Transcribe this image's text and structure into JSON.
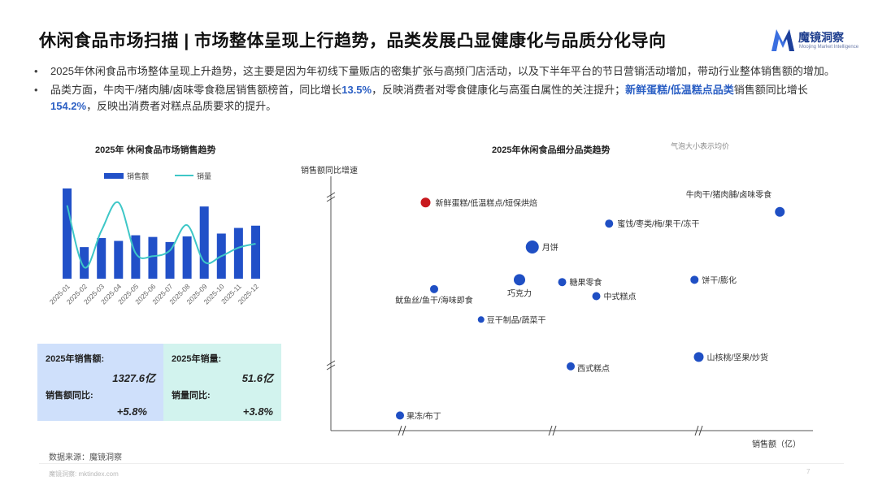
{
  "header": {
    "title": "休闲食品市场扫描 | 市场整体呈现上行趋势，品类发展凸显健康化与品质分化导向",
    "logo_name": "魔镜洞察",
    "logo_sub": "Moojing Market Intelligence"
  },
  "bullets": {
    "b1": "2025年休闲食品市场整体呈现上升趋势，这主要是因为年初线下量贩店的密集扩张与高频门店活动，以及下半年平台的节日营销活动增加，带动行业整体销售额的增加。",
    "b2_part1": "品类方面，牛肉干/猪肉脯/卤味零食稳居销售额榜首，同比增长",
    "b2_num1": "13.5%",
    "b2_part2": "，反映消费者对零食健康化与高蛋白属性的关注提升；",
    "b2_cat": "新鲜蛋糕/低温糕点品类",
    "b2_part3": "销售额同比增长",
    "b2_num2": "154.2%",
    "b2_part4": "，反映出消费者对糕点品质要求的提升。"
  },
  "kpis": {
    "sales_label": "2025年销售额:",
    "sales_value": "1327.6亿",
    "sales_yoy_label": "销售额同比:",
    "sales_yoy_value": "+5.8%",
    "volume_label": "2025年销量:",
    "volume_value": "51.6亿",
    "volume_yoy_label": "销量同比:",
    "volume_yoy_value": "+3.8%"
  },
  "colors": {
    "bar": "#2150c8",
    "line": "#3ec7c7",
    "bubble": "#1f4fc4",
    "bubble_highlight": "#c8191e",
    "kpi_blue_bg": "#cfe0fb",
    "kpi_teal_bg": "#d2f3ee",
    "accent_text": "#2b5fc4"
  },
  "chart_data": [
    {
      "type": "bar",
      "title": "2025年 休闲食品市场销售趋势",
      "categories": [
        "2025-01",
        "2025-02",
        "2025-03",
        "2025-04",
        "2025-05",
        "2025-06",
        "2025-07",
        "2025-08",
        "2025-09",
        "2025-10",
        "2025-11",
        "2025-12"
      ],
      "series": [
        {
          "name": "销售额",
          "type": "bar",
          "values": [
            160,
            56,
            72,
            67,
            77,
            74,
            65,
            75,
            128,
            80,
            90,
            94
          ]
        },
        {
          "name": "销量",
          "type": "line",
          "values": [
            130,
            20,
            85,
            135,
            45,
            40,
            50,
            95,
            30,
            40,
            55,
            62
          ]
        }
      ],
      "legend": "top",
      "grid": false
    },
    {
      "type": "scatter",
      "title": "2025年休闲食品细分品类趋势",
      "note": "气泡大小表示均价",
      "xlabel": "销售额（亿）",
      "ylabel": "销售额同比增速",
      "xlim": [
        0,
        100
      ],
      "ylim": [
        0,
        100
      ],
      "axis_breaks": true,
      "points": [
        {
          "label": "新鲜蛋糕/低温糕点/短保烘焙",
          "x": 14,
          "y": 94,
          "size": 6,
          "highlight": true
        },
        {
          "label": "牛肉干/猪肉脯/卤味零食",
          "x": 97,
          "y": 90,
          "size": 6,
          "highlight": false
        },
        {
          "label": "蜜饯/枣类/梅/果干/冻干",
          "x": 57,
          "y": 85,
          "size": 5,
          "highlight": false
        },
        {
          "label": "月饼",
          "x": 39,
          "y": 75,
          "size": 8,
          "highlight": false
        },
        {
          "label": "巧克力",
          "x": 36,
          "y": 61,
          "size": 7,
          "highlight": false
        },
        {
          "label": "糖果零食",
          "x": 46,
          "y": 60,
          "size": 5,
          "highlight": false
        },
        {
          "label": "饼干/膨化",
          "x": 77,
          "y": 61,
          "size": 5,
          "highlight": false
        },
        {
          "label": "中式糕点",
          "x": 54,
          "y": 54,
          "size": 5,
          "highlight": false
        },
        {
          "label": "鱿鱼丝/鱼干/海味即食",
          "x": 16,
          "y": 57,
          "size": 5,
          "highlight": false
        },
        {
          "label": "豆干制品/蔬菜干",
          "x": 27,
          "y": 44,
          "size": 4,
          "highlight": false
        },
        {
          "label": "山核桃/坚果/炒货",
          "x": 78,
          "y": 28,
          "size": 6,
          "highlight": false
        },
        {
          "label": "西式糕点",
          "x": 48,
          "y": 24,
          "size": 5,
          "highlight": false
        },
        {
          "label": "果冻/布丁",
          "x": 8,
          "y": 3,
          "size": 5,
          "highlight": false
        }
      ]
    }
  ],
  "footer": {
    "source": "数据来源：魔镜洞察",
    "url": "魔镜洞察: mktindex.com",
    "page": "7"
  }
}
